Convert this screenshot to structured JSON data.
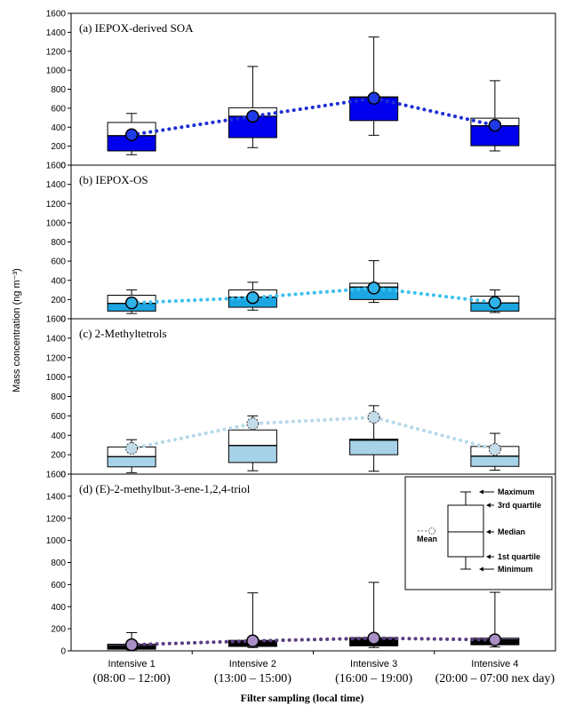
{
  "chart_data": {
    "type": "box",
    "ylabel": "Mass concentration (ng m⁻³)",
    "xlabel": "Filter sampling (local time)",
    "ylim": [
      0,
      1600
    ],
    "yticks": [
      0,
      200,
      400,
      600,
      800,
      1000,
      1200,
      1400,
      1600
    ],
    "categories": [
      {
        "name": "Intensive 1",
        "time": "(08:00 – 12:00)"
      },
      {
        "name": "Intensive 2",
        "time": "(13:00 – 15:00)"
      },
      {
        "name": "Intensive 3",
        "time": "(16:00 – 19:00)"
      },
      {
        "name": "Intensive 4",
        "time": "(20:00 – 07:00 nex day)"
      }
    ],
    "panels": [
      {
        "title": "(a) IEPOX-derived SOA",
        "lower_color": "#0000ee",
        "upper_color": "#ffffff",
        "mean_color": "#1f3ae8",
        "line_color": "#1f2fd6",
        "mean_dashed": false,
        "boxes": [
          {
            "min": 110,
            "q1": 150,
            "median": 310,
            "q3": 450,
            "max": 545,
            "mean": 320
          },
          {
            "min": 185,
            "q1": 290,
            "median": 515,
            "q3": 605,
            "max": 1040,
            "mean": 515
          },
          {
            "min": 315,
            "q1": 470,
            "median": 715,
            "q3": 720,
            "max": 1350,
            "mean": 705
          },
          {
            "min": 150,
            "q1": 205,
            "median": 415,
            "q3": 495,
            "max": 890,
            "mean": 420
          }
        ]
      },
      {
        "title": "(b) IEPOX-OS",
        "lower_color": "#1ba6e2",
        "upper_color": "#ffffff",
        "mean_color": "#2fb3ea",
        "line_color": "#3cc1ee",
        "mean_dashed": false,
        "boxes": [
          {
            "min": 55,
            "q1": 80,
            "median": 160,
            "q3": 245,
            "max": 300,
            "mean": 165
          },
          {
            "min": 90,
            "q1": 120,
            "median": 225,
            "q3": 300,
            "max": 380,
            "mean": 220
          },
          {
            "min": 170,
            "q1": 200,
            "median": 330,
            "q3": 370,
            "max": 605,
            "mean": 320
          },
          {
            "min": 65,
            "q1": 80,
            "median": 165,
            "q3": 235,
            "max": 300,
            "mean": 170
          }
        ]
      },
      {
        "title": "(c) 2-Methyltetrols",
        "lower_color": "#a7d3e8",
        "upper_color": "#ffffff",
        "mean_color": "#c3dcea",
        "line_color": "#b7d9ea",
        "mean_dashed": true,
        "boxes": [
          {
            "min": 15,
            "q1": 75,
            "median": 180,
            "q3": 280,
            "max": 355,
            "mean": 265
          },
          {
            "min": 35,
            "q1": 120,
            "median": 295,
            "q3": 455,
            "max": 600,
            "mean": 520
          },
          {
            "min": 30,
            "q1": 200,
            "median": 350,
            "q3": 360,
            "max": 705,
            "mean": 585
          },
          {
            "min": 40,
            "q1": 80,
            "median": 185,
            "q3": 285,
            "max": 420,
            "mean": 255
          }
        ]
      },
      {
        "title": "(d) (E)-2-methylbut-3-ene-1,2,4-triol",
        "lower_color": "#000000",
        "upper_color": "#8a72a8",
        "mean_color": "#a98fc6",
        "line_color": "#5a3f83",
        "mean_dashed": false,
        "boxes": [
          {
            "min": 10,
            "q1": 15,
            "median": 45,
            "q3": 60,
            "max": 165,
            "mean": 55
          },
          {
            "min": 30,
            "q1": 40,
            "median": 85,
            "q3": 95,
            "max": 525,
            "mean": 90
          },
          {
            "min": 30,
            "q1": 45,
            "median": 105,
            "q3": 120,
            "max": 620,
            "mean": 115
          },
          {
            "min": 35,
            "q1": 55,
            "median": 100,
            "q3": 115,
            "max": 530,
            "mean": 100
          }
        ]
      }
    ],
    "legend": {
      "maximum": "Maximum",
      "q3": "3rd quartile",
      "median": "Median",
      "q1": "1st quartile",
      "minimum": "Minimum",
      "mean": "Mean"
    }
  }
}
